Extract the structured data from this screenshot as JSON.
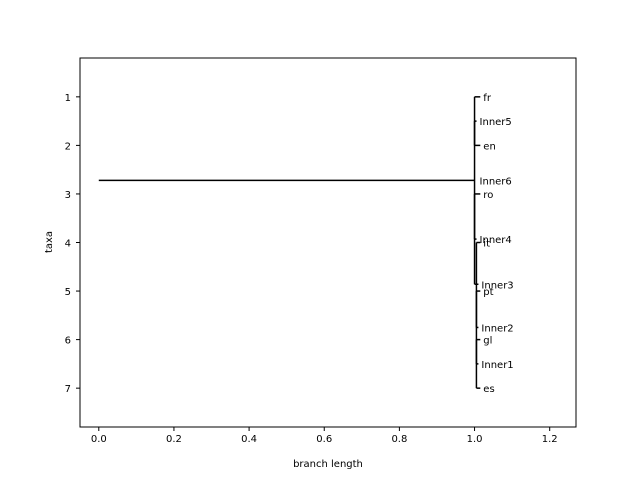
{
  "chart_data": {
    "type": "tree",
    "title": "",
    "xlabel": "branch length",
    "ylabel": "taxa",
    "xlim": [
      -0.05,
      1.27
    ],
    "ylim": [
      7.8,
      0.2
    ],
    "xticks": [
      0.0,
      0.2,
      0.4,
      0.6,
      0.8,
      1.0,
      1.2
    ],
    "xtick_labels": [
      "0.0",
      "0.2",
      "0.4",
      "0.6",
      "0.8",
      "1.0",
      "1.2"
    ],
    "yticks": [
      1,
      2,
      3,
      4,
      5,
      6,
      7
    ],
    "ytick_labels": [
      "1",
      "2",
      "3",
      "4",
      "5",
      "6",
      "7"
    ],
    "grid": false,
    "nodes": [
      {
        "name": "Inner6",
        "x": 1.0,
        "y": 2.72,
        "parent": null
      },
      {
        "name": "Inner5",
        "x": 1.0,
        "y": 1.5,
        "parent": "Inner6"
      },
      {
        "name": "fr",
        "x": 1.01,
        "y": 1,
        "parent": "Inner5"
      },
      {
        "name": "en",
        "x": 1.01,
        "y": 2,
        "parent": "Inner5"
      },
      {
        "name": "Inner4",
        "x": 1.0,
        "y": 3.93,
        "parent": "Inner6"
      },
      {
        "name": "ro",
        "x": 1.01,
        "y": 3,
        "parent": "Inner4"
      },
      {
        "name": "Inner3",
        "x": 1.005,
        "y": 4.86,
        "parent": "Inner4"
      },
      {
        "name": "it",
        "x": 1.01,
        "y": 4,
        "parent": "Inner3"
      },
      {
        "name": "Inner2",
        "x": 1.005,
        "y": 5.75,
        "parent": "Inner3"
      },
      {
        "name": "pt",
        "x": 1.01,
        "y": 5,
        "parent": "Inner2"
      },
      {
        "name": "Inner1",
        "x": 1.005,
        "y": 6.5,
        "parent": "Inner2"
      },
      {
        "name": "gl",
        "x": 1.01,
        "y": 6,
        "parent": "Inner1"
      },
      {
        "name": "es",
        "x": 1.01,
        "y": 7,
        "parent": "Inner1"
      }
    ],
    "root_branch": {
      "from_x": 0.0,
      "to_x": 1.0,
      "y": 2.72
    }
  }
}
